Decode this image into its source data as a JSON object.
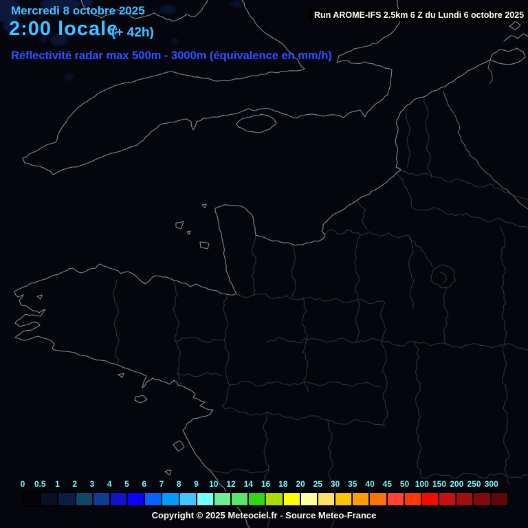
{
  "header": {
    "date_line": "Mercredi 8 octobre 2025",
    "time_line": "2:00 locale",
    "offset_label": "(+ 42h)",
    "product_line": "Réflectivité radar max 500m - 3000m (équivalence en mm/h)"
  },
  "run_banner": {
    "text": "Run AROME-IFS 2.5km 6 Z du Lundi 6 octobre 2025"
  },
  "scale": {
    "labels": [
      "0",
      "0.5",
      "1",
      "2",
      "3",
      "4",
      "5",
      "6",
      "7",
      "8",
      "9",
      "10",
      "12",
      "14",
      "16",
      "18",
      "20",
      "25",
      "30",
      "35",
      "40",
      "45",
      "50",
      "100",
      "150",
      "200",
      "250",
      "300"
    ],
    "colors": [
      "#030309",
      "#081126",
      "#0B1D45",
      "#114664",
      "#0E3D98",
      "#1212CC",
      "#0F00FA",
      "#0662FF",
      "#009CFF",
      "#42C6FF",
      "#73FFFF",
      "#70EE95",
      "#58E46E",
      "#30D812",
      "#AADC00",
      "#FFFF00",
      "#FFFF9E",
      "#FFDF66",
      "#FFC400",
      "#FF9E00",
      "#FF7400",
      "#FF4136",
      "#FF3A00",
      "#F50A00",
      "#C81010",
      "#A00E0E",
      "#7E0A0A",
      "#600707"
    ],
    "label_color": "#7CFCFF"
  },
  "footer": {
    "copyright": "Copyright © 2025 Meteociel.fr - Source Meteo-France"
  },
  "theme": {
    "map_background": "#05060D",
    "coast_color": "#8A8A92",
    "department_border_color": "#33353F",
    "country_border_color": "#6E6E78",
    "date_color": "#3FC8FF",
    "product_color": "#2E55FA",
    "run_text_color": "#FFFFFF",
    "run_banner_background": "#000000",
    "copyright_color": "#FFFFFF",
    "echo_color": "#0D1A42"
  }
}
